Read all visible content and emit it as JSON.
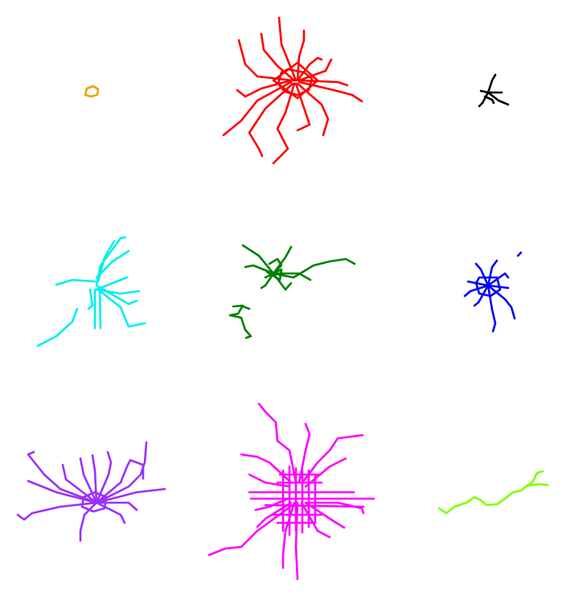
{
  "networks": [
    {
      "id": "orange",
      "color": "#f0a000"
    },
    {
      "id": "red",
      "color": "#ff0000"
    },
    {
      "id": "black",
      "color": "#000000"
    },
    {
      "id": "cyan",
      "color": "#00eeee"
    },
    {
      "id": "green",
      "color": "#008000"
    },
    {
      "id": "blue",
      "color": "#0000ff"
    },
    {
      "id": "purple",
      "color": "#9b30ff"
    },
    {
      "id": "magenta",
      "color": "#ff00ff"
    },
    {
      "id": "lime",
      "color": "#7fff00"
    }
  ]
}
